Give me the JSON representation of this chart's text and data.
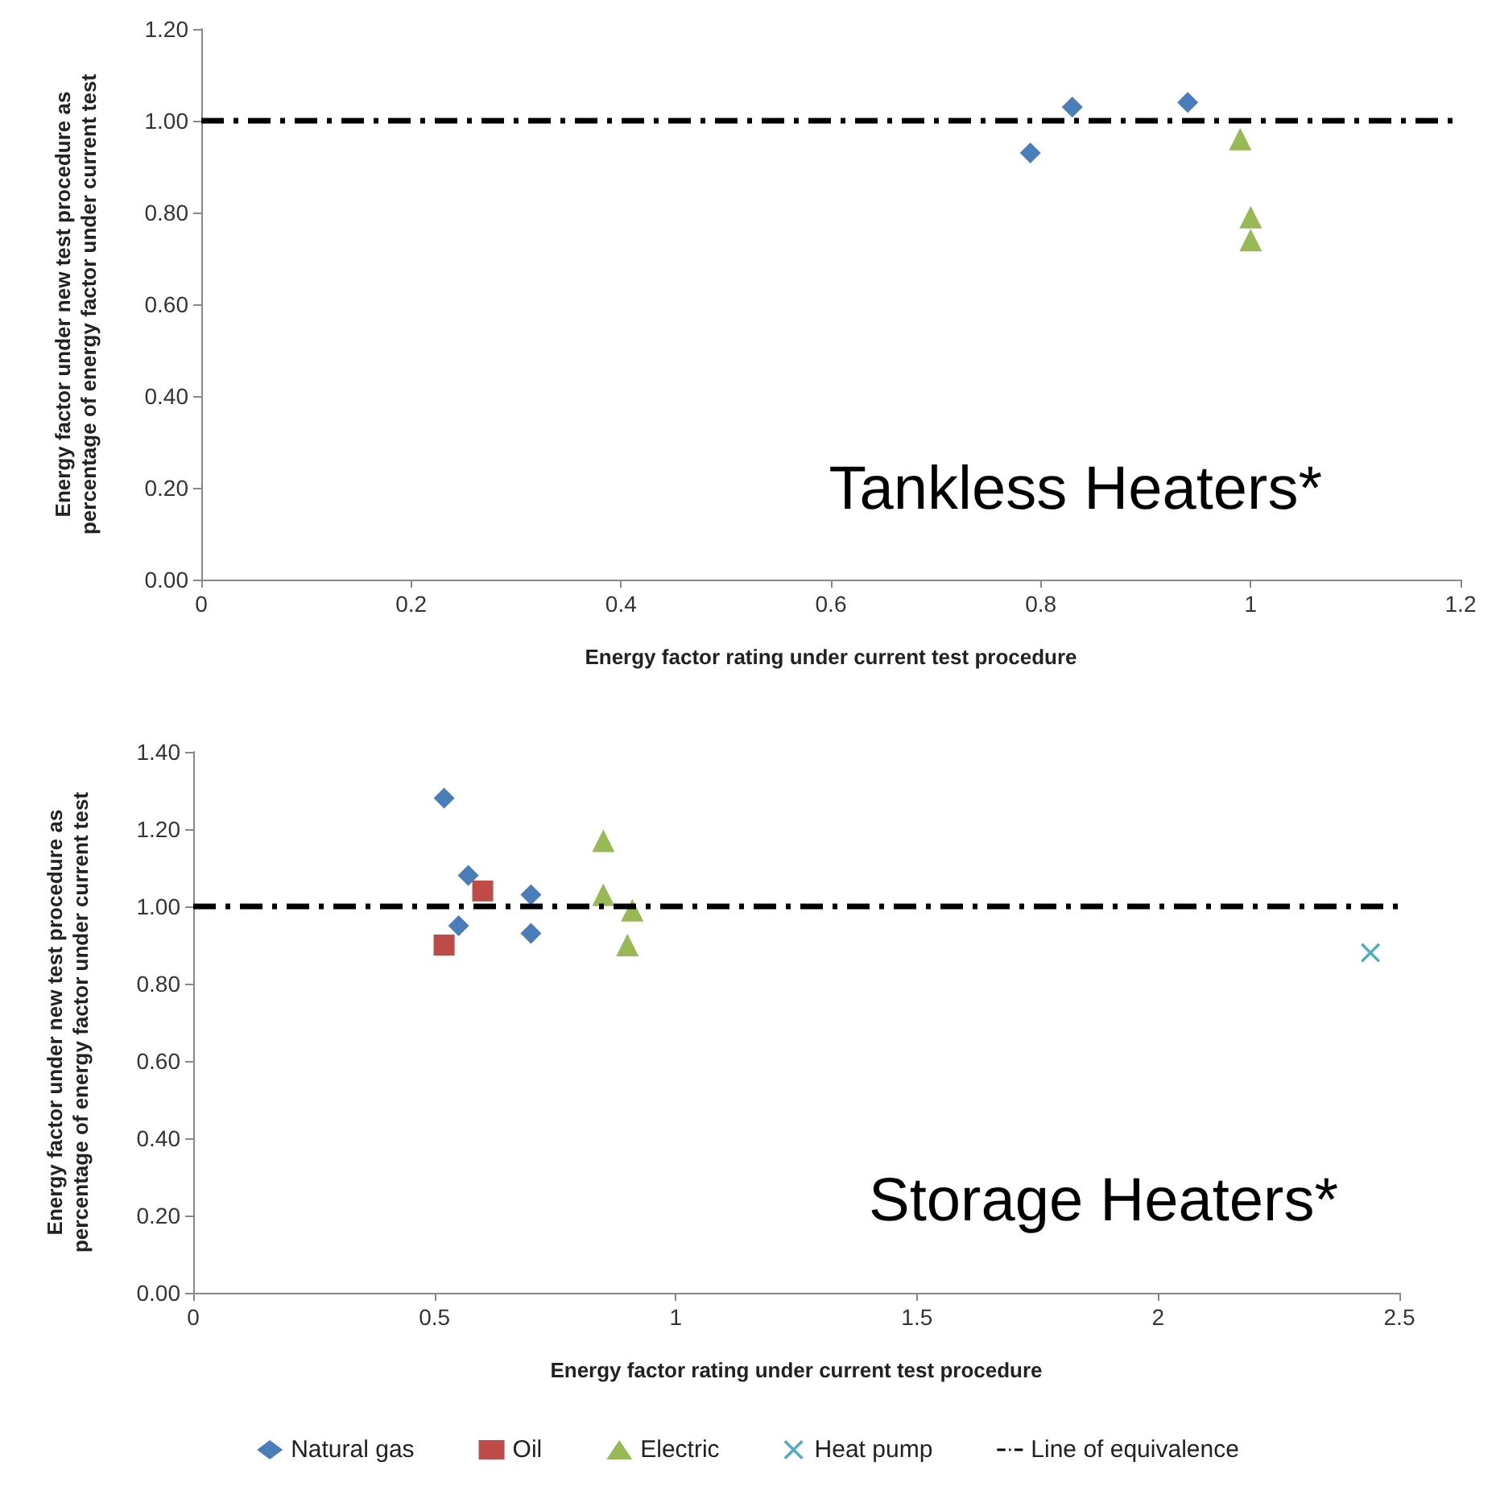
{
  "chart_data": [
    {
      "type": "scatter",
      "xlabel": "Energy factor rating under current test procedure",
      "ylabel": "Energy factor under new test procedure as percentage of energy factor under current test",
      "annotations": [
        "Tankless Heaters*"
      ],
      "xlim": [
        0,
        1.2
      ],
      "xticks": [
        0,
        0.2,
        0.4,
        0.6,
        0.8,
        1,
        1.2
      ],
      "ylim": [
        0,
        1.2
      ],
      "yticks": [
        {
          "value": 0,
          "label": "0.00"
        },
        {
          "value": 0.2,
          "label": "0.20"
        },
        {
          "value": 0.4,
          "label": "0.40"
        },
        {
          "value": 0.6,
          "label": "0.60"
        },
        {
          "value": 0.8,
          "label": "0.80"
        },
        {
          "value": 1,
          "label": "1.00"
        },
        {
          "value": 1.2,
          "label": "1.20"
        }
      ],
      "grid": false,
      "legend": false,
      "series": [
        {
          "color": "#4a7ebb",
          "marker": "diamond",
          "x": [
            0.79,
            0.83,
            0.94
          ],
          "values": [
            0.93,
            1.03,
            1.04
          ]
        },
        {
          "color": "#98b954",
          "marker": "triangle",
          "x": [
            0.99,
            1.0,
            1.0
          ],
          "values": [
            0.96,
            0.79,
            0.74
          ]
        }
      ],
      "ref_lines": [
        {
          "axis": "y",
          "value": 1,
          "color": "#000000",
          "line_style": "dashed"
        }
      ]
    },
    {
      "type": "scatter",
      "xlabel": "Energy factor rating under current test procedure",
      "ylabel": "Energy factor under new test procedure as percentage of energy factor under current test",
      "annotations": [
        "Storage Heaters*"
      ],
      "xlim": [
        0,
        2.5
      ],
      "xticks": [
        0,
        0.5,
        1,
        1.5,
        2,
        2.5
      ],
      "ylim": [
        0,
        1.4
      ],
      "yticks": [
        {
          "value": 0,
          "label": "0.00"
        },
        {
          "value": 0.2,
          "label": "0.20"
        },
        {
          "value": 0.4,
          "label": "0.40"
        },
        {
          "value": 0.6,
          "label": "0.60"
        },
        {
          "value": 0.8,
          "label": "0.80"
        },
        {
          "value": 1,
          "label": "1.00"
        },
        {
          "value": 1.2,
          "label": "1.20"
        },
        {
          "value": 1.4,
          "label": "1.40"
        }
      ],
      "grid": false,
      "legend": "bottom",
      "series": [
        {
          "name": "Natural gas",
          "color": "#4a7ebb",
          "marker": "diamond",
          "x": [
            0.52,
            0.57,
            0.55,
            0.7,
            0.7
          ],
          "values": [
            1.28,
            1.08,
            0.95,
            1.03,
            0.93
          ]
        },
        {
          "name": "Oil",
          "color": "#be4b48",
          "marker": "square",
          "x": [
            0.52,
            0.6
          ],
          "values": [
            0.9,
            1.04
          ]
        },
        {
          "name": "Electric",
          "color": "#98b954",
          "marker": "triangle",
          "x": [
            0.85,
            0.85,
            0.91,
            0.9
          ],
          "values": [
            1.17,
            1.03,
            0.99,
            0.9
          ]
        },
        {
          "name": "Heat pump",
          "color": "#4bacc6",
          "marker": "cross",
          "x": [
            2.44
          ],
          "values": [
            0.88
          ]
        }
      ],
      "ref_lines": [
        {
          "axis": "y",
          "value": 1,
          "label": "Line of equivalence",
          "color": "#000000",
          "line_style": "dashed"
        }
      ]
    }
  ]
}
